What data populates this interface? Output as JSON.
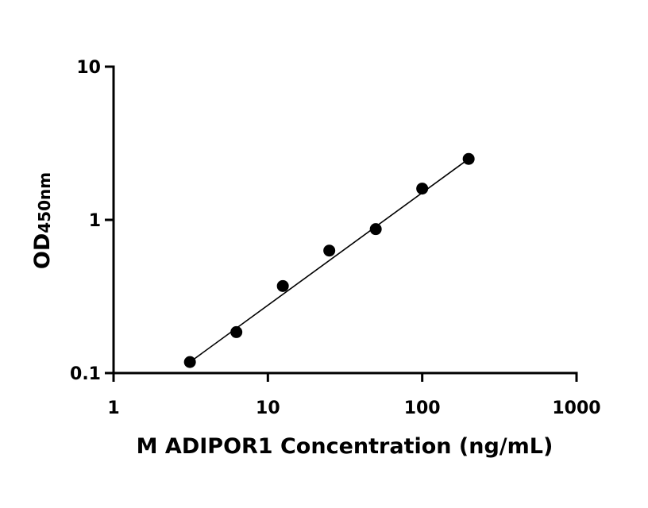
{
  "chart_data": {
    "type": "scatter",
    "x_scale": "log",
    "y_scale": "log",
    "xlim": [
      1,
      1000
    ],
    "ylim": [
      0.1,
      10
    ],
    "x_ticks": [
      "1",
      "10",
      "100",
      "1000"
    ],
    "y_ticks": [
      "0.1",
      "1",
      "10"
    ],
    "xlabel": "M ADIPOR1 Concentration (ng/mL)",
    "ylabel_main": "OD",
    "ylabel_sub": "450nm",
    "series": [
      {
        "x": [
          3.125,
          6.25,
          12.5,
          25,
          50,
          100,
          200
        ],
        "y": [
          0.118,
          0.185,
          0.37,
          0.63,
          0.87,
          1.6,
          2.5
        ]
      }
    ],
    "fit_line": {
      "x": [
        3.125,
        200
      ],
      "y": [
        0.118,
        2.5
      ]
    },
    "grid": false,
    "legend": "none"
  }
}
